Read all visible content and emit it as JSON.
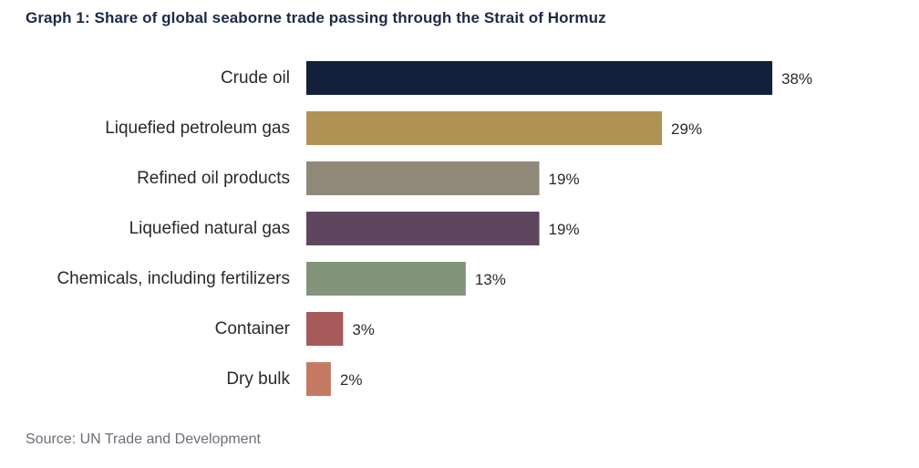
{
  "chart_data": {
    "type": "bar",
    "orientation": "horizontal",
    "title": "Graph 1: Share of global seaborne trade passing through the Strait of Hormuz",
    "categories": [
      "Crude oil",
      "Liquefied petroleum gas",
      "Refined oil products",
      "Liquefied natural gas",
      "Chemicals, including fertilizers",
      "Container",
      "Dry bulk"
    ],
    "values": [
      38,
      29,
      19,
      19,
      13,
      3,
      2
    ],
    "value_labels": [
      "38%",
      "29%",
      "19%",
      "19%",
      "13%",
      "3%",
      "2%"
    ],
    "colors": [
      "#13203b",
      "#b09254",
      "#908979",
      "#5e465e",
      "#82957b",
      "#a65a5a",
      "#c47a62"
    ],
    "unit": "%",
    "grid": false,
    "source": "Source: UN Trade and Development"
  }
}
